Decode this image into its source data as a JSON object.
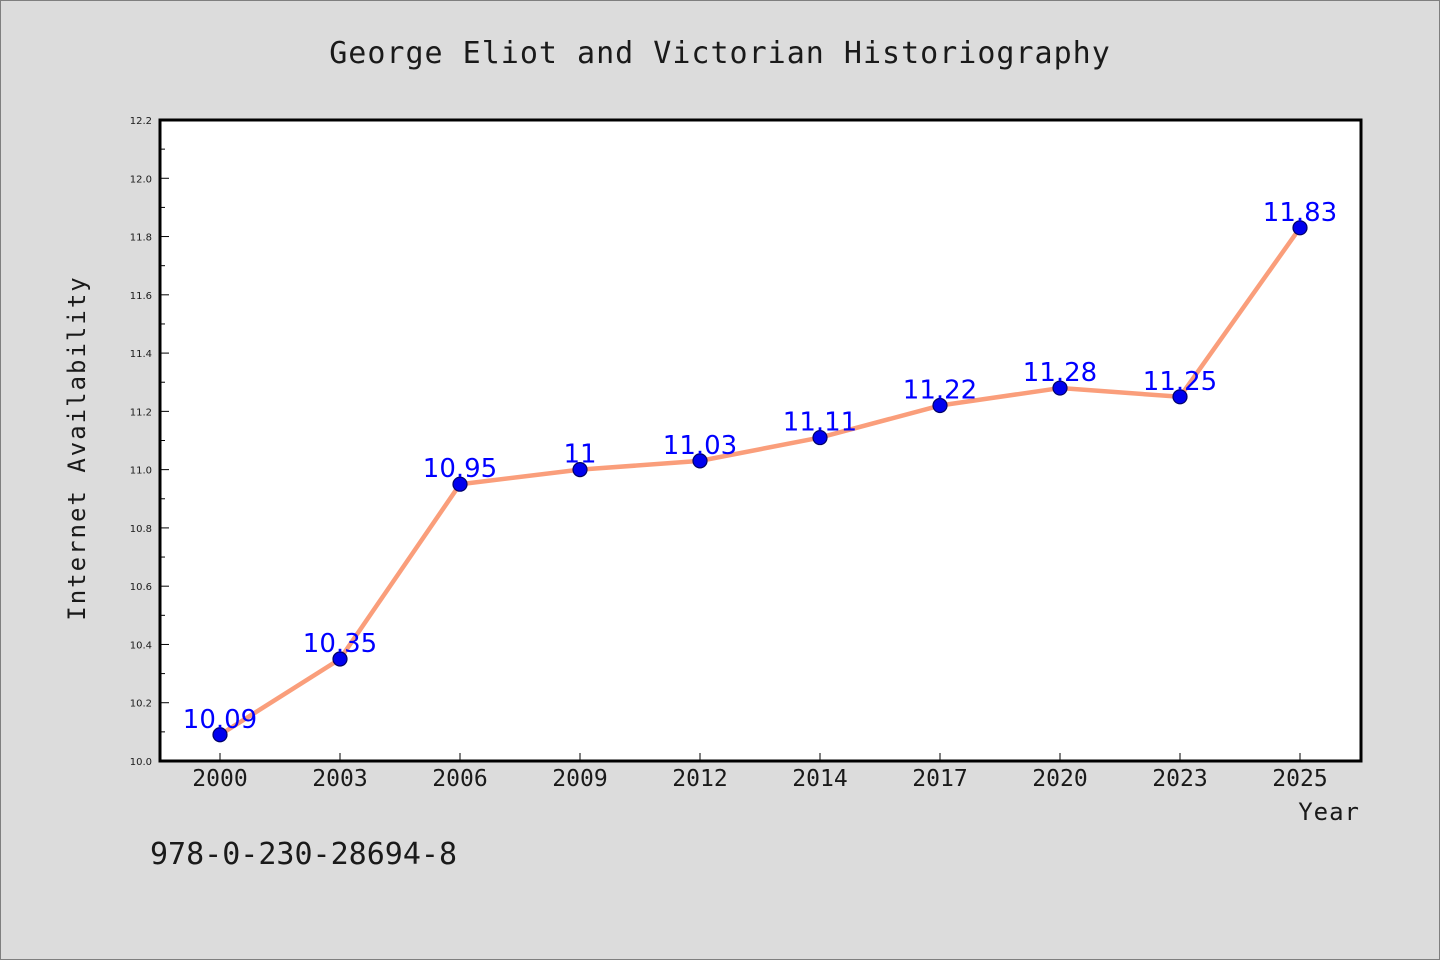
{
  "page": {
    "identifier": "978-0-230-28694-8"
  },
  "chart_data": {
    "type": "line",
    "title": "George Eliot and Victorian Historiography",
    "xlabel": "Year",
    "ylabel": "Internet Availability",
    "categories": [
      "2000",
      "2003",
      "2006",
      "2009",
      "2012",
      "2014",
      "2017",
      "2020",
      "2023",
      "2025"
    ],
    "values": [
      10.09,
      10.35,
      10.95,
      11.0,
      11.03,
      11.11,
      11.22,
      11.28,
      11.25,
      11.83
    ],
    "data_labels": [
      "10.09",
      "10.35",
      "10.95",
      "11",
      "11.03",
      "11.11",
      "11.22",
      "11.28",
      "11.25",
      "11.83"
    ],
    "ylim": [
      10.0,
      12.2
    ],
    "y_major_ticks": [
      10.0,
      10.2,
      10.4,
      10.6,
      10.8,
      11.0,
      11.2,
      11.4,
      11.6,
      11.8,
      12.0,
      12.2
    ],
    "y_tick_labels": [
      "10.0",
      "10.2",
      "10.4",
      "10.6",
      "10.8",
      "11.0",
      "11.2",
      "11.4",
      "11.6",
      "11.8",
      "12.0",
      "12.2"
    ],
    "y_minor_step": 0.1,
    "grid": false,
    "legend": "none",
    "colors": {
      "figure_background": "#dcdcdc",
      "plot_background": "#ffffff",
      "line": "#fa9e7b",
      "marker_fill": "#0000ee",
      "marker_edge": "#000066",
      "data_label": "#0000ff",
      "text": "#1a1a1a",
      "axes": "#000000"
    }
  }
}
